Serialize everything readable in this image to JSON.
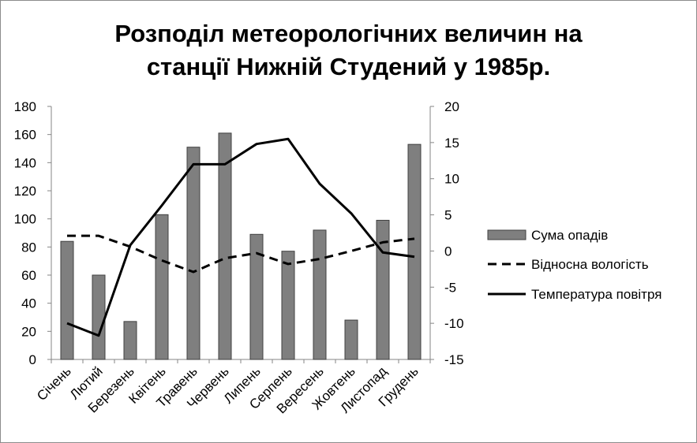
{
  "chart_data": {
    "type": "bar",
    "title_lines": [
      "Розподіл метеорологічних величин на",
      "станції Нижній Студений у 1985р."
    ],
    "categories": [
      "Січень",
      "Лютий",
      "Березень",
      "Квітень",
      "Травень",
      "Червень",
      "Липень",
      "Серпень",
      "Вересень",
      "Жовтень",
      "Листопад",
      "Грудень"
    ],
    "left_axis": {
      "min": 0,
      "max": 180,
      "step": 20
    },
    "right_axis": {
      "min": -15,
      "max": 20,
      "step": 5
    },
    "grid": false,
    "legend_position": "right",
    "series": [
      {
        "name": "Сума опадів",
        "type": "bar",
        "axis": "left",
        "color": "#7f7f7f",
        "values": [
          84,
          60,
          27,
          103,
          151,
          161,
          89,
          77,
          92,
          28,
          99,
          153
        ]
      },
      {
        "name": "Відносна вологість",
        "type": "line",
        "style": "dashed",
        "axis": "right",
        "color": "#000000",
        "values": [
          2.1,
          2.1,
          0.6,
          -1.3,
          -2.9,
          -1.0,
          -0.3,
          -1.8,
          -1.1,
          0.0,
          1.2,
          1.7
        ]
      },
      {
        "name": "Температура повітря",
        "type": "line",
        "style": "solid",
        "axis": "right",
        "color": "#000000",
        "values": [
          -10.0,
          -11.7,
          0.8,
          6.3,
          12.0,
          12.0,
          14.8,
          15.5,
          9.3,
          5.2,
          -0.2,
          -0.8
        ]
      }
    ]
  }
}
